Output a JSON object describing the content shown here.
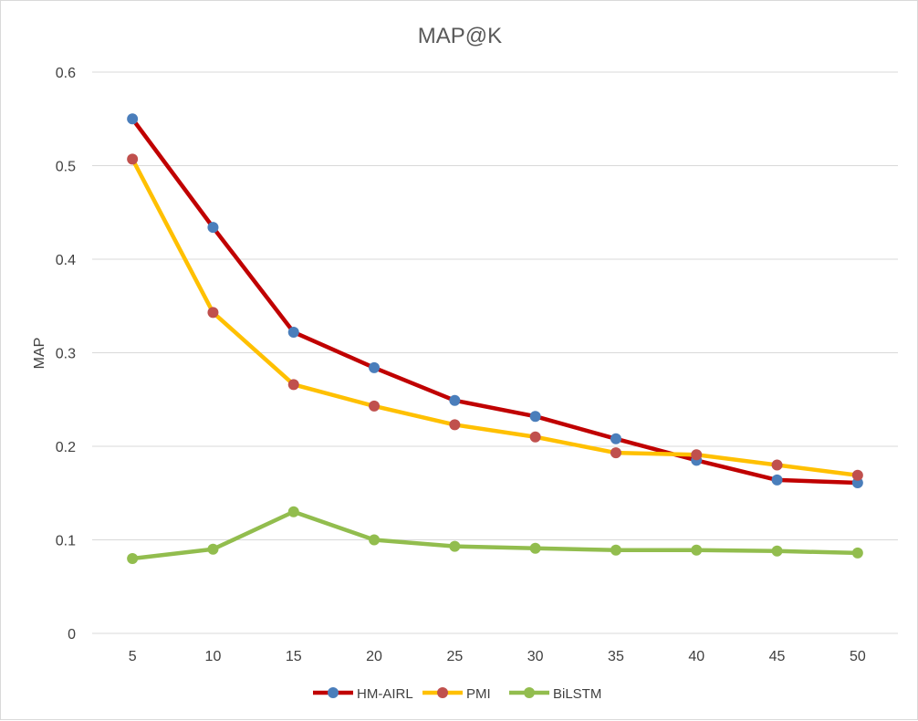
{
  "chart_data": {
    "type": "line",
    "title": "MAP@K",
    "xlabel": "",
    "ylabel": "MAP",
    "categories": [
      "5",
      "10",
      "15",
      "20",
      "25",
      "30",
      "35",
      "40",
      "45",
      "50"
    ],
    "ylim": [
      0,
      0.6
    ],
    "yticks": [
      "0",
      "0.1",
      "0.2",
      "0.3",
      "0.4",
      "0.5",
      "0.6"
    ],
    "grid": true,
    "legend_position": "bottom",
    "series": [
      {
        "name": "HM-AIRL",
        "line_color": "#c00000",
        "marker_color": "#4a7ebb",
        "values": [
          0.55,
          0.434,
          0.322,
          0.284,
          0.249,
          0.232,
          0.208,
          0.185,
          0.164,
          0.161
        ]
      },
      {
        "name": "PMI",
        "line_color": "#ffc000",
        "marker_color": "#c0504d",
        "values": [
          0.507,
          0.343,
          0.266,
          0.243,
          0.223,
          0.21,
          0.193,
          0.191,
          0.18,
          0.169
        ]
      },
      {
        "name": "BiLSTM",
        "line_color": "#92bd4e",
        "marker_color": "#92bd4e",
        "values": [
          0.08,
          0.09,
          0.13,
          0.1,
          0.093,
          0.091,
          0.089,
          0.089,
          0.088,
          0.086
        ]
      }
    ]
  }
}
